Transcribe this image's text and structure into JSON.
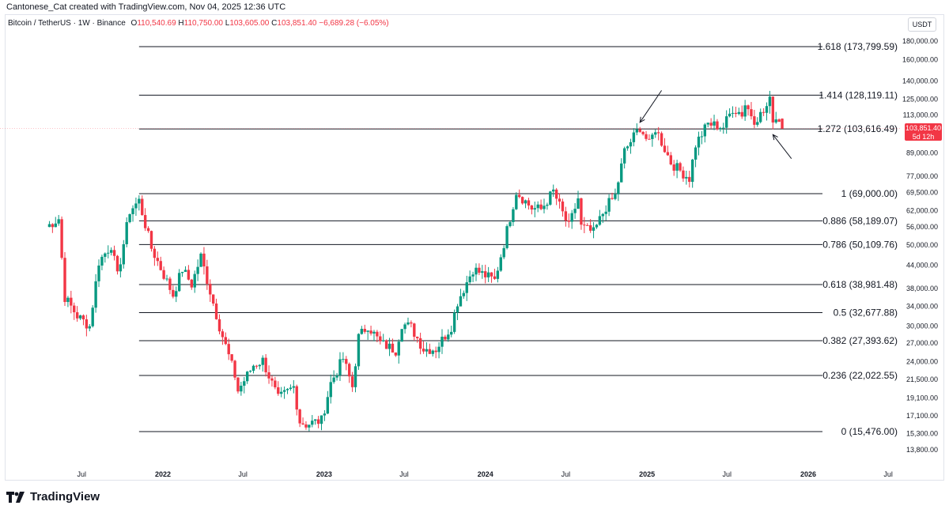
{
  "credit": "Cantonese_Cat created with TradingView.com, Nov 04, 2025 12:36 UTC",
  "legend": {
    "symbol": "Bitcoin / TetherUS · 1W · Binance",
    "o_label": "O",
    "o": "110,540.69",
    "h_label": "H",
    "h": "110,750.00",
    "l_label": "L",
    "l": "103,605.00",
    "c_label": "C",
    "c": "103,851.40",
    "change": "−6,689.28 (−6.05%)"
  },
  "currency": "USDT",
  "last_price": {
    "value": "103,851.40",
    "countdown": "5d 12h"
  },
  "brand": "TradingView",
  "colors": {
    "up": "#089981",
    "down": "#f23645",
    "fib_line": "#131722",
    "grid_text": "#131722"
  },
  "chart_data": {
    "type": "candlestick",
    "y_scale": "log",
    "ylim": [
      12000,
      200000
    ],
    "y_ticks": [
      {
        "v": 180000,
        "t": "180,000.00"
      },
      {
        "v": 160000,
        "t": "160,000.00"
      },
      {
        "v": 140000,
        "t": "140,000.00"
      },
      {
        "v": 125000,
        "t": "125,000.00"
      },
      {
        "v": 113000,
        "t": "113,000.00"
      },
      {
        "v": 89000,
        "t": "89,000.00"
      },
      {
        "v": 77000,
        "t": "77,000.00"
      },
      {
        "v": 69500,
        "t": "69,500.00"
      },
      {
        "v": 62000,
        "t": "62,000.00"
      },
      {
        "v": 56000,
        "t": "56,000.00"
      },
      {
        "v": 50000,
        "t": "50,000.00"
      },
      {
        "v": 44000,
        "t": "44,000.00"
      },
      {
        "v": 38000,
        "t": "38,000.00"
      },
      {
        "v": 34000,
        "t": "34,000.00"
      },
      {
        "v": 30000,
        "t": "30,000.00"
      },
      {
        "v": 27000,
        "t": "27,000.00"
      },
      {
        "v": 24000,
        "t": "24,000.00"
      },
      {
        "v": 21500,
        "t": "21,500.00"
      },
      {
        "v": 19100,
        "t": "19,100.00"
      },
      {
        "v": 17100,
        "t": "17,100.00"
      },
      {
        "v": 15300,
        "t": "15,300.00"
      },
      {
        "v": 13800,
        "t": "13,800.00"
      }
    ],
    "x_ticks": [
      {
        "d": "2021-07-01",
        "t": "Jul"
      },
      {
        "d": "2022-01-01",
        "t": "2022",
        "bold": true
      },
      {
        "d": "2022-07-01",
        "t": "Jul"
      },
      {
        "d": "2023-01-01",
        "t": "2023",
        "bold": true
      },
      {
        "d": "2023-07-01",
        "t": "Jul"
      },
      {
        "d": "2024-01-01",
        "t": "2024",
        "bold": true
      },
      {
        "d": "2024-07-01",
        "t": "Jul"
      },
      {
        "d": "2025-01-01",
        "t": "2025",
        "bold": true
      },
      {
        "d": "2025-07-01",
        "t": "Jul"
      },
      {
        "d": "2026-01-01",
        "t": "2026",
        "bold": true
      },
      {
        "d": "2026-07-01",
        "t": "Jul"
      }
    ],
    "fib_start": "2021-11-08",
    "fib_levels": [
      {
        "ratio": "1.618",
        "price": 173799.59,
        "label": "1.618 (173,799.59)"
      },
      {
        "ratio": "1.414",
        "price": 128119.11,
        "label": "1.414 (128,119.11)"
      },
      {
        "ratio": "1.272",
        "price": 103616.49,
        "label": "1.272 (103,616.49)"
      },
      {
        "ratio": "1",
        "price": 69000.0,
        "label": "1 (69,000.00)"
      },
      {
        "ratio": "0.886",
        "price": 58189.07,
        "label": "0.886 (58,189.07)"
      },
      {
        "ratio": "0.786",
        "price": 50109.76,
        "label": "0.786 (50,109.76)"
      },
      {
        "ratio": "0.618",
        "price": 38981.48,
        "label": "0.618 (38,981.48)"
      },
      {
        "ratio": "0.5",
        "price": 32677.88,
        "label": "0.5 (32,677.88)"
      },
      {
        "ratio": "0.382",
        "price": 27393.62,
        "label": "0.382 (27,393.62)"
      },
      {
        "ratio": "0.236",
        "price": 22022.55,
        "label": "0.236 (22,022.55)"
      },
      {
        "ratio": "0",
        "price": 15476.0,
        "label": "0 (15,476.00)"
      }
    ],
    "annotations": [
      {
        "type": "arrow",
        "from": {
          "d": "2025-02-03",
          "p": 132000
        },
        "to": {
          "d": "2024-12-16",
          "p": 108000
        }
      },
      {
        "type": "arrow",
        "from": {
          "d": "2025-11-24",
          "p": 86000
        },
        "to": {
          "d": "2025-10-13",
          "p": 100000
        }
      }
    ],
    "anchors": [
      [
        "2021-04-12",
        56000
      ],
      [
        "2021-05-10",
        59000
      ],
      [
        "2021-05-24",
        36000
      ],
      [
        "2021-06-21",
        32000
      ],
      [
        "2021-07-19",
        30000
      ],
      [
        "2021-08-09",
        45000
      ],
      [
        "2021-09-06",
        50000
      ],
      [
        "2021-09-20",
        41000
      ],
      [
        "2021-10-18",
        62000
      ],
      [
        "2021-11-08",
        66000
      ],
      [
        "2021-12-06",
        49000
      ],
      [
        "2022-01-24",
        36500
      ],
      [
        "2022-02-14",
        43000
      ],
      [
        "2022-03-07",
        39000
      ],
      [
        "2022-03-28",
        46500
      ],
      [
        "2022-05-09",
        30000
      ],
      [
        "2022-06-13",
        22000
      ],
      [
        "2022-06-20",
        20000
      ],
      [
        "2022-07-25",
        23500
      ],
      [
        "2022-08-15",
        24200
      ],
      [
        "2022-09-19",
        19000
      ],
      [
        "2022-10-24",
        20500
      ],
      [
        "2022-11-07",
        16500
      ],
      [
        "2022-11-21",
        16200
      ],
      [
        "2022-12-26",
        16600
      ],
      [
        "2023-01-16",
        21000
      ],
      [
        "2023-02-13",
        24500
      ],
      [
        "2023-03-06",
        20500
      ],
      [
        "2023-03-20",
        28000
      ],
      [
        "2023-04-10",
        30200
      ],
      [
        "2023-05-08",
        27000
      ],
      [
        "2023-06-12",
        25800
      ],
      [
        "2023-06-26",
        30500
      ],
      [
        "2023-07-17",
        29800
      ],
      [
        "2023-08-14",
        26000
      ],
      [
        "2023-09-11",
        26000
      ],
      [
        "2023-10-16",
        30000
      ],
      [
        "2023-10-30",
        35000
      ],
      [
        "2023-12-04",
        43000
      ],
      [
        "2024-01-22",
        40000
      ],
      [
        "2024-02-12",
        50500
      ],
      [
        "2024-03-11",
        70000
      ],
      [
        "2024-04-15",
        63000
      ],
      [
        "2024-05-06",
        62500
      ],
      [
        "2024-06-03",
        70000
      ],
      [
        "2024-06-24",
        61000
      ],
      [
        "2024-07-08",
        56000
      ],
      [
        "2024-07-29",
        67000
      ],
      [
        "2024-08-05",
        56000
      ],
      [
        "2024-09-02",
        54000
      ],
      [
        "2024-09-30",
        63500
      ],
      [
        "2024-10-21",
        68000
      ],
      [
        "2024-11-11",
        90000
      ],
      [
        "2024-12-16",
        105000
      ],
      [
        "2025-01-06",
        94000
      ],
      [
        "2025-01-20",
        104000
      ],
      [
        "2025-02-24",
        84000
      ],
      [
        "2025-03-10",
        81000
      ],
      [
        "2025-04-07",
        76000
      ],
      [
        "2025-04-21",
        94000
      ],
      [
        "2025-05-19",
        107000
      ],
      [
        "2025-06-23",
        105000
      ],
      [
        "2025-07-14",
        118000
      ],
      [
        "2025-08-04",
        114000
      ],
      [
        "2025-08-11",
        121000
      ],
      [
        "2025-09-01",
        110000
      ],
      [
        "2025-09-22",
        115000
      ],
      [
        "2025-10-06",
        123500
      ],
      [
        "2025-10-13",
        111000
      ],
      [
        "2025-10-27",
        110500
      ],
      [
        "2025-11-03",
        103851
      ]
    ]
  }
}
